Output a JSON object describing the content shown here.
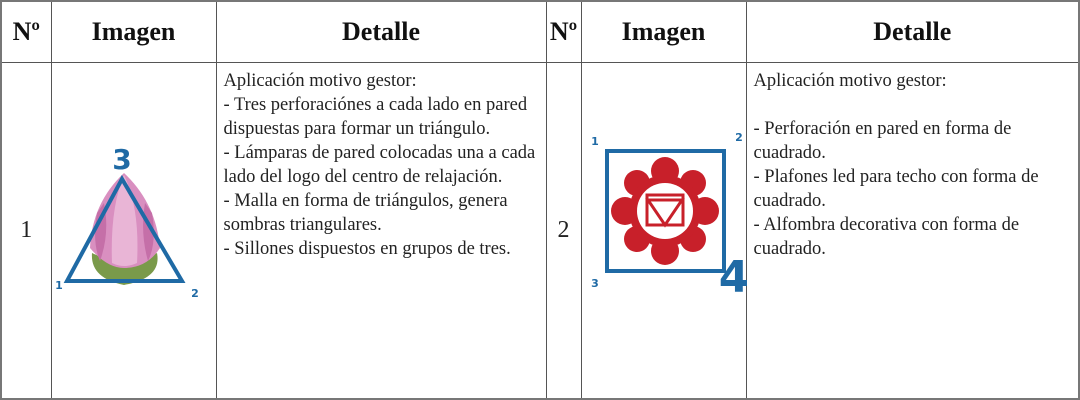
{
  "table": {
    "headers": [
      "Nº",
      "Imagen",
      "Detalle",
      "Nº",
      "Imagen",
      "Detalle"
    ],
    "rows": [
      {
        "number": "1",
        "image_labels": [
          "3",
          "1",
          "2"
        ],
        "detail": [
          "Aplicación motivo gestor:",
          "-  Tres perforaciónes a cada lado en pared dispuestas para formar un triángulo.",
          "-  Lámparas de pared colocadas una a cada lado del logo del centro de relajación.",
          "- Malla en forma de triángulos, genera sombras triangulares.",
          "- Sillones dispuestos en grupos de tres."
        ]
      },
      {
        "number": "2",
        "image_labels": [
          "1",
          "2",
          "3",
          "4"
        ],
        "detail": [
          "Aplicación motivo gestor:",
          "- Perforación en pared en forma de cuadrado.",
          "- Plafones led para techo con forma de cuadrado.",
          "- Alfombra decorativa con forma de cuadrado."
        ]
      }
    ]
  }
}
